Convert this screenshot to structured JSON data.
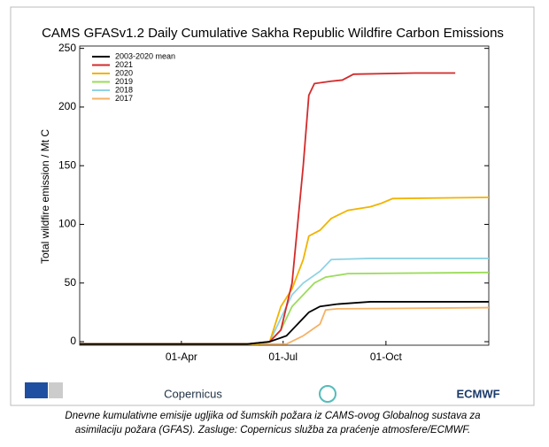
{
  "chart_data": {
    "type": "line",
    "title": "CAMS GFASv1.2 Daily Cumulative Sakha Republic Wildfire Carbon Emissions",
    "y_label": "Total wildfire emission / Mt C",
    "xlim": [
      0,
      366
    ],
    "xticks": [
      {
        "value": 91,
        "label": "01-Apr"
      },
      {
        "value": 182,
        "label": "01-Jul"
      },
      {
        "value": 274,
        "label": "01-Oct"
      }
    ],
    "ylim": [
      -3,
      252
    ],
    "yticks": [
      0,
      50,
      100,
      150,
      200,
      250
    ],
    "grid": false,
    "legend": "top-left",
    "series": [
      {
        "name": "2003-2020 mean",
        "color": "#000000",
        "x": [
          0,
          150,
          170,
          185,
          195,
          205,
          215,
          230,
          260,
          366
        ],
        "values": [
          -2,
          -2,
          0,
          5,
          15,
          25,
          30,
          32,
          34,
          34
        ]
      },
      {
        "name": "2021",
        "color": "#d42a2a",
        "x": [
          0,
          150,
          170,
          180,
          185,
          190,
          195,
          200,
          205,
          210,
          225,
          235,
          245,
          300,
          336
        ],
        "values": [
          -2,
          -2,
          0,
          10,
          30,
          50,
          100,
          150,
          210,
          220,
          222,
          223,
          228,
          229,
          229
        ]
      },
      {
        "name": "2020",
        "color": "#f2b300",
        "x": [
          0,
          160,
          170,
          180,
          190,
          200,
          205,
          215,
          225,
          240,
          260,
          270,
          280,
          366
        ],
        "values": [
          -2,
          -2,
          0,
          30,
          45,
          70,
          90,
          95,
          105,
          112,
          115,
          118,
          122,
          123
        ]
      },
      {
        "name": "2019",
        "color": "#9bdc5a",
        "x": [
          0,
          160,
          170,
          180,
          190,
          200,
          210,
          220,
          240,
          366
        ],
        "values": [
          -2,
          -2,
          0,
          10,
          30,
          40,
          50,
          55,
          58,
          59
        ]
      },
      {
        "name": "2018",
        "color": "#8fd3e3",
        "x": [
          0,
          160,
          170,
          180,
          190,
          200,
          215,
          225,
          260,
          366
        ],
        "values": [
          -2,
          -2,
          0,
          20,
          40,
          50,
          60,
          70,
          71,
          71
        ]
      },
      {
        "name": "2017",
        "color": "#f5b266",
        "x": [
          0,
          185,
          200,
          215,
          220,
          230,
          366
        ],
        "values": [
          -2,
          -2,
          5,
          15,
          27,
          28,
          29
        ]
      }
    ]
  },
  "logos": [
    "Copernicus",
    "ECMWF"
  ],
  "caption": [
    "Dnevne kumulativne emisije ugljika od šumskih požara iz CAMS-ovog Globalnog sustava za",
    "asimilaciju požara (GFAS). Zasluge: Copernicus služba za praćenje atmosfere/ECMWF."
  ]
}
